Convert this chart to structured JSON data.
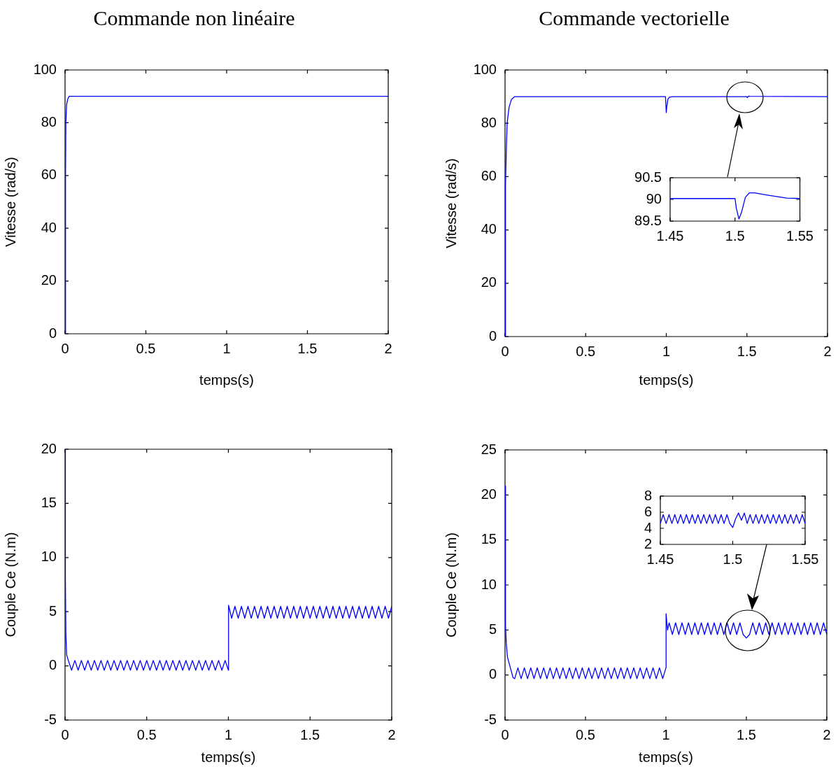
{
  "chart_data": [
    {
      "type": "line",
      "title": "Commande non linéaire",
      "xlabel": "temps(s)",
      "ylabel": "Vitesse (rad/s)",
      "x": [
        0,
        0.003,
        0.005,
        0.01,
        0.017,
        0.025,
        2
      ],
      "series": [
        {
          "color": "#0000ff",
          "values": [
            0,
            60,
            80,
            87,
            89,
            90,
            90
          ]
        }
      ],
      "xlim": [
        0,
        2
      ],
      "xticks": [
        0,
        0.5,
        1,
        1.5,
        2
      ],
      "ylim": [
        0,
        100
      ],
      "yticks": [
        0,
        20,
        40,
        60,
        80,
        100
      ]
    },
    {
      "type": "line",
      "title": "Commande vectorielle",
      "xlabel": "temps(s)",
      "ylabel": "Vitesse (rad/s)",
      "x": [
        0,
        0.003,
        0.008,
        0.013,
        0.025,
        0.04,
        0.06,
        0.995,
        1,
        1.003,
        1.01,
        1.02,
        1.04,
        1.5,
        1.502,
        1.51,
        1.52,
        2
      ],
      "series": [
        {
          "color": "#0000ff",
          "values": [
            0,
            57,
            70,
            80,
            86,
            89,
            90,
            90,
            84,
            86,
            89,
            89.8,
            90,
            90,
            89.6,
            90.2,
            90.1,
            90
          ]
        }
      ],
      "xlim": [
        0,
        2
      ],
      "xticks": [
        0,
        0.5,
        1,
        1.5,
        2
      ],
      "ylim": [
        0,
        100
      ],
      "yticks": [
        0,
        20,
        40,
        60,
        80,
        100
      ]
    },
    {
      "type": "line",
      "x": [
        1.45,
        1.5,
        1.501,
        1.503,
        1.505,
        1.508,
        1.511,
        1.515,
        1.525,
        1.54,
        1.55
      ],
      "series": [
        {
          "color": "#0000ff",
          "values": [
            90.02,
            90.02,
            89.8,
            89.55,
            89.7,
            90.05,
            90.15,
            90.15,
            90.1,
            90.03,
            90.02
          ]
        }
      ],
      "xlim": [
        1.45,
        1.55
      ],
      "xticks": [
        1.45,
        1.5,
        1.55
      ],
      "ylim": [
        89.5,
        90.5
      ],
      "yticks": [
        89.5,
        90,
        90.5
      ]
    },
    {
      "type": "line",
      "xlabel": "temps(s)",
      "ylabel": "Couple Ce (N.m)",
      "x": [
        0,
        0.002,
        0.005,
        0.01,
        0.02,
        0.04,
        0.06,
        0.08,
        0.1,
        0.12,
        0.14,
        0.16,
        0.18,
        0.2,
        0.22,
        0.24,
        0.26,
        0.28,
        0.3,
        0.32,
        0.34,
        0.36,
        0.38,
        0.4,
        0.42,
        0.44,
        0.46,
        0.48,
        0.5,
        0.52,
        0.54,
        0.56,
        0.58,
        0.6,
        0.62,
        0.64,
        0.66,
        0.68,
        0.7,
        0.72,
        0.74,
        0.76,
        0.78,
        0.8,
        0.82,
        0.84,
        0.86,
        0.88,
        0.9,
        0.92,
        0.94,
        0.96,
        0.98,
        1,
        1.001,
        1.02,
        1.04,
        1.06,
        1.08,
        1.1,
        1.12,
        1.14,
        1.16,
        1.18,
        1.2,
        1.22,
        1.24,
        1.26,
        1.28,
        1.3,
        1.32,
        1.34,
        1.36,
        1.38,
        1.4,
        1.42,
        1.44,
        1.46,
        1.48,
        1.5,
        1.52,
        1.54,
        1.56,
        1.58,
        1.6,
        1.62,
        1.64,
        1.66,
        1.68,
        1.7,
        1.72,
        1.74,
        1.76,
        1.78,
        1.8,
        1.82,
        1.84,
        1.86,
        1.88,
        1.9,
        1.92,
        1.94,
        1.96,
        1.98,
        2
      ],
      "series": [
        {
          "color": "#0000ff",
          "values": [
            20,
            8.3,
            3,
            1,
            0.5,
            -0.4,
            0.5,
            -0.4,
            0.5,
            -0.4,
            0.5,
            -0.4,
            0.5,
            -0.4,
            0.5,
            -0.4,
            0.5,
            -0.4,
            0.5,
            -0.4,
            0.5,
            -0.4,
            0.5,
            -0.4,
            0.5,
            -0.4,
            0.5,
            -0.4,
            0.5,
            -0.4,
            0.5,
            -0.4,
            0.5,
            -0.4,
            0.5,
            -0.4,
            0.5,
            -0.4,
            0.5,
            -0.4,
            0.5,
            -0.4,
            0.5,
            -0.4,
            0.5,
            -0.4,
            0.5,
            -0.4,
            0.5,
            -0.4,
            0.5,
            -0.4,
            0.5,
            -0.4,
            5.6,
            4.4,
            5.5,
            4.4,
            5.5,
            4.4,
            5.5,
            4.4,
            5.5,
            4.4,
            5.5,
            4.4,
            5.5,
            4.4,
            5.5,
            4.4,
            5.5,
            4.4,
            5.5,
            4.4,
            5.5,
            4.4,
            5.5,
            4.4,
            5.5,
            4.4,
            5.5,
            4.4,
            5.5,
            4.4,
            5.5,
            4.4,
            5.5,
            4.4,
            5.5,
            4.4,
            5.5,
            4.4,
            5.5,
            4.4,
            5.5,
            4.4,
            5.5,
            4.4,
            5.5,
            4.4,
            5.5,
            4.4,
            5.5,
            4.4,
            5.5
          ]
        }
      ],
      "xlim": [
        0,
        2
      ],
      "xticks": [
        0,
        0.5,
        1,
        1.5,
        2
      ],
      "ylim": [
        -5,
        20
      ],
      "yticks": [
        -5,
        0,
        5,
        10,
        15,
        20
      ]
    },
    {
      "type": "line",
      "xlabel": "temps(s)",
      "ylabel": "Couple Ce (N.m)",
      "x": [
        0,
        0.003,
        0.008,
        0.015,
        0.03,
        0.05,
        0.06,
        0.08,
        0.1,
        0.12,
        0.14,
        0.16,
        0.18,
        0.2,
        0.22,
        0.24,
        0.26,
        0.28,
        0.3,
        0.32,
        0.34,
        0.36,
        0.38,
        0.4,
        0.42,
        0.44,
        0.46,
        0.48,
        0.5,
        0.52,
        0.54,
        0.56,
        0.58,
        0.6,
        0.62,
        0.64,
        0.66,
        0.68,
        0.7,
        0.72,
        0.74,
        0.76,
        0.78,
        0.8,
        0.82,
        0.84,
        0.86,
        0.88,
        0.9,
        0.92,
        0.94,
        0.96,
        0.98,
        1,
        1.001,
        1.01,
        1.02,
        1.04,
        1.06,
        1.08,
        1.1,
        1.12,
        1.14,
        1.16,
        1.18,
        1.2,
        1.22,
        1.24,
        1.26,
        1.28,
        1.3,
        1.32,
        1.34,
        1.36,
        1.38,
        1.4,
        1.42,
        1.44,
        1.46,
        1.48,
        1.5,
        1.52,
        1.54,
        1.56,
        1.58,
        1.6,
        1.62,
        1.64,
        1.66,
        1.68,
        1.7,
        1.72,
        1.74,
        1.76,
        1.78,
        1.8,
        1.82,
        1.84,
        1.86,
        1.88,
        1.9,
        1.92,
        1.94,
        1.96,
        1.98,
        2
      ],
      "series": [
        {
          "color": "#0000ff",
          "values": [
            21,
            5.5,
            3.5,
            2,
            1,
            -0.3,
            -0.4,
            0.8,
            -0.4,
            0.8,
            -0.4,
            0.8,
            -0.4,
            0.8,
            -0.4,
            0.8,
            -0.4,
            0.8,
            -0.4,
            0.8,
            -0.4,
            0.8,
            -0.4,
            0.8,
            -0.4,
            0.8,
            -0.4,
            0.8,
            -0.4,
            0.8,
            -0.4,
            0.8,
            -0.4,
            0.8,
            -0.4,
            0.8,
            -0.4,
            0.8,
            -0.4,
            0.8,
            -0.4,
            0.8,
            -0.4,
            0.8,
            -0.4,
            0.8,
            -0.4,
            0.8,
            -0.4,
            0.8,
            -0.4,
            0.8,
            -0.4,
            0.8,
            6.8,
            5,
            5.8,
            4.5,
            5.8,
            4.5,
            5.8,
            4.5,
            5.8,
            4.5,
            5.8,
            4.5,
            5.8,
            4.5,
            5.8,
            4.5,
            5.8,
            4.5,
            5.8,
            4.5,
            5.8,
            4.5,
            5.8,
            4.5,
            5.8,
            4.5,
            4.1,
            4.5,
            5.8,
            4.5,
            5.8,
            4.5,
            5.8,
            4.5,
            5.8,
            4.5,
            5.8,
            4.5,
            5.8,
            4.5,
            5.8,
            4.5,
            5.8,
            4.5,
            5.8,
            4.5,
            5.8,
            4.5,
            5.8,
            4.5,
            5.8,
            4.5
          ]
        }
      ],
      "xlim": [
        0,
        2
      ],
      "xticks": [
        0,
        0.5,
        1,
        1.5,
        2
      ],
      "ylim": [
        -5,
        25
      ],
      "yticks": [
        -5,
        0,
        5,
        10,
        15,
        20,
        25
      ]
    },
    {
      "type": "line",
      "x": [
        1.45,
        1.452,
        1.454,
        1.456,
        1.458,
        1.46,
        1.462,
        1.464,
        1.466,
        1.468,
        1.47,
        1.472,
        1.474,
        1.476,
        1.478,
        1.48,
        1.482,
        1.484,
        1.486,
        1.488,
        1.49,
        1.492,
        1.494,
        1.496,
        1.498,
        1.5,
        1.502,
        1.504,
        1.506,
        1.508,
        1.51,
        1.512,
        1.514,
        1.516,
        1.518,
        1.52,
        1.522,
        1.524,
        1.526,
        1.528,
        1.53,
        1.532,
        1.534,
        1.536,
        1.538,
        1.54,
        1.542,
        1.544,
        1.546,
        1.548,
        1.55
      ],
      "series": [
        {
          "color": "#0000ff",
          "values": [
            4.6,
            5.7,
            4.6,
            5.7,
            4.6,
            5.7,
            4.6,
            5.7,
            4.6,
            5.7,
            4.6,
            5.7,
            4.6,
            5.7,
            4.6,
            5.7,
            4.6,
            5.7,
            4.6,
            5.7,
            4.6,
            5.7,
            4.6,
            5.7,
            4.6,
            4.1,
            5.2,
            5.9,
            5.0,
            5.9,
            4.6,
            5.7,
            4.6,
            5.7,
            4.6,
            5.7,
            4.6,
            5.7,
            4.6,
            5.7,
            4.6,
            5.7,
            4.6,
            5.7,
            4.6,
            5.7,
            4.6,
            5.7,
            4.6,
            5.7,
            4.6
          ]
        }
      ],
      "xlim": [
        1.45,
        1.55
      ],
      "xticks": [
        1.45,
        1.5,
        1.55
      ],
      "ylim": [
        2,
        8
      ],
      "yticks": [
        2,
        4,
        6,
        8
      ]
    }
  ]
}
